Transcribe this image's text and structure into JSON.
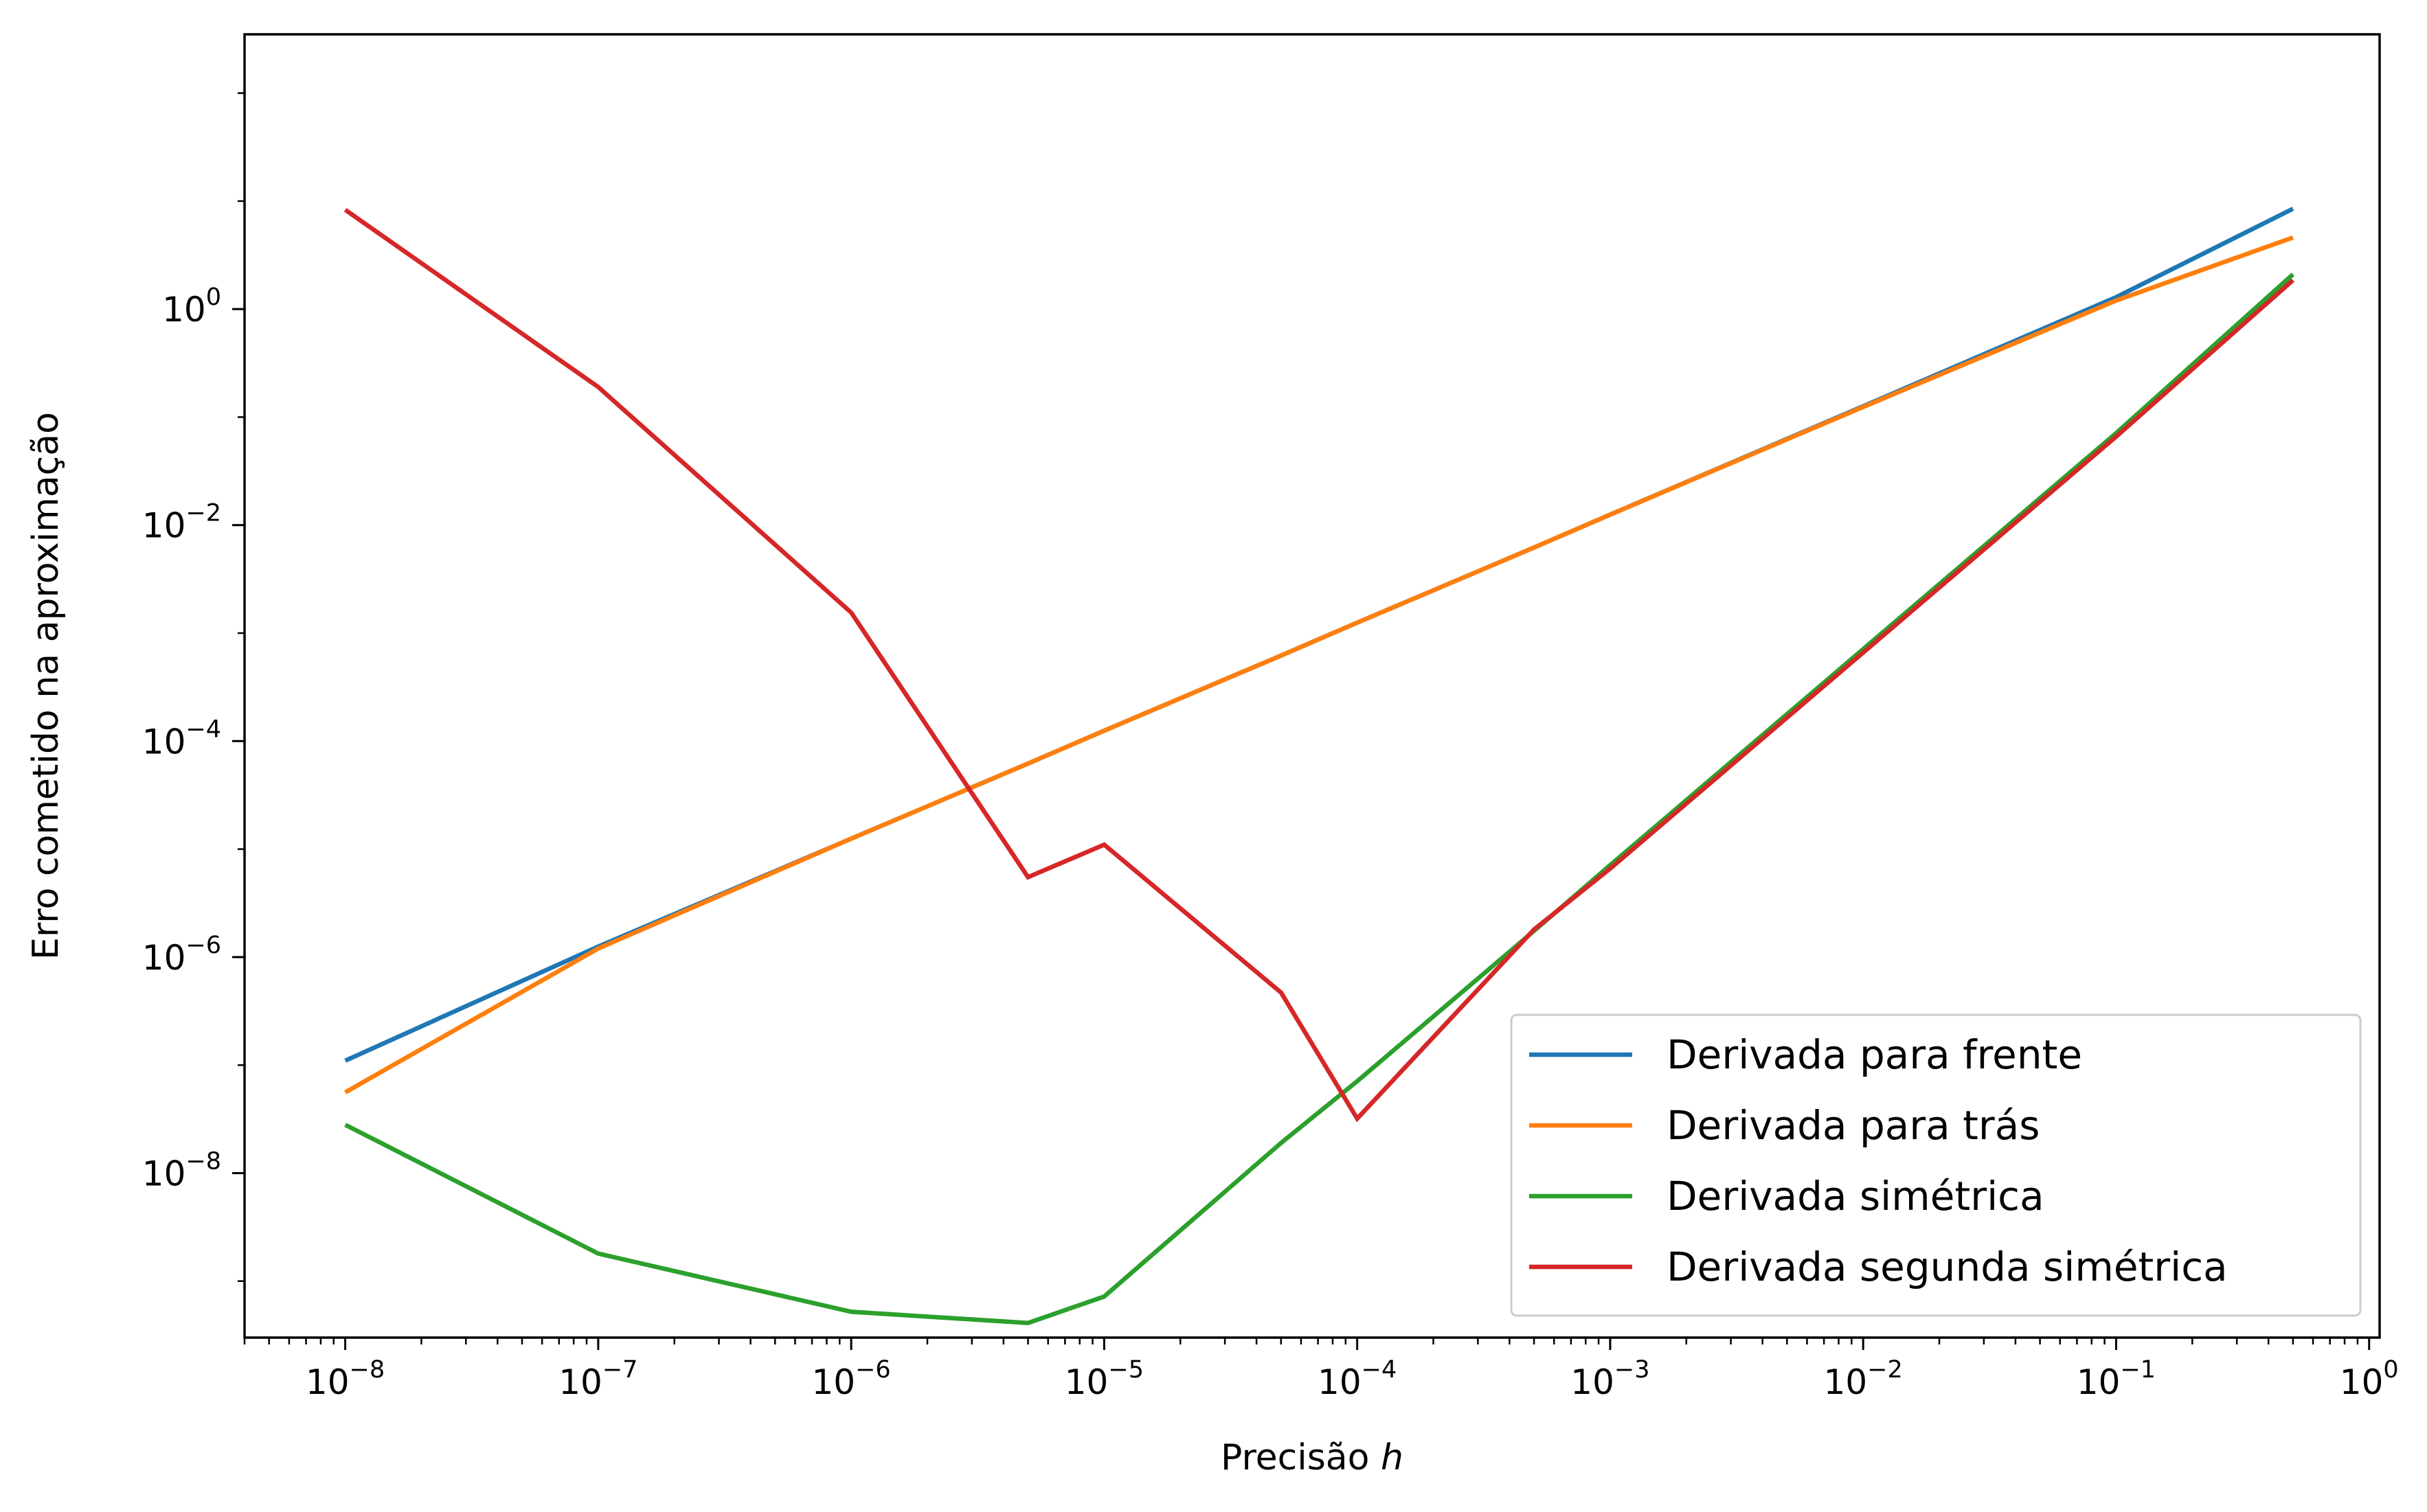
{
  "chart_data": {
    "type": "line",
    "xlabel_prefix": "Precisão ",
    "xlabel_var": "h",
    "ylabel": "Erro cometido na aproximação",
    "xscale": "log",
    "yscale": "log",
    "xlim": [
      4e-09,
      1.1
    ],
    "ylim": [
      3e-10,
      350
    ],
    "grid": false,
    "legend_position": "lower right",
    "x_ticks": [
      {
        "base": "10",
        "exp": "−8"
      },
      {
        "base": "10",
        "exp": "−7"
      },
      {
        "base": "10",
        "exp": "−6"
      },
      {
        "base": "10",
        "exp": "−5"
      },
      {
        "base": "10",
        "exp": "−4"
      },
      {
        "base": "10",
        "exp": "−3"
      },
      {
        "base": "10",
        "exp": "−2"
      },
      {
        "base": "10",
        "exp": "−1"
      },
      {
        "base": "10",
        "exp": "0"
      }
    ],
    "y_ticks": [
      {
        "base": "10",
        "exp": "−8"
      },
      {
        "base": "10",
        "exp": "−6"
      },
      {
        "base": "10",
        "exp": "−4"
      },
      {
        "base": "10",
        "exp": "−2"
      },
      {
        "base": "10",
        "exp": "0"
      }
    ],
    "series": [
      {
        "name": "Derivada para frente",
        "color": "#1f77b4",
        "x": [
          1e-08,
          1e-07,
          1e-06,
          5e-06,
          1e-05,
          5e-05,
          0.0001,
          0.0005,
          0.001,
          0.01,
          0.1,
          0.5
        ],
        "y": [
          1.1e-07,
          1.25e-06,
          1.25e-05,
          6.2e-05,
          0.000125,
          0.00062,
          0.00125,
          0.0062,
          0.0125,
          0.126,
          1.29,
          8.5
        ]
      },
      {
        "name": "Derivada para trás",
        "color": "#ff7f0e",
        "x": [
          1e-08,
          1e-07,
          1e-06,
          5e-06,
          1e-05,
          5e-05,
          0.0001,
          0.0005,
          0.001,
          0.01,
          0.1,
          0.5
        ],
        "y": [
          5.6e-08,
          1.2e-06,
          1.25e-05,
          6.2e-05,
          0.000125,
          0.00062,
          0.00125,
          0.0062,
          0.0125,
          0.124,
          1.2,
          4.6
        ]
      },
      {
        "name": "Derivada simétrica",
        "color": "#2ca02c",
        "x": [
          1e-08,
          1e-07,
          1e-06,
          5e-06,
          1e-05,
          5e-05,
          0.0001,
          0.0005,
          0.001,
          0.01,
          0.1,
          0.5
        ],
        "y": [
          2.8e-08,
          1.8e-09,
          5.2e-10,
          4.1e-10,
          7.2e-10,
          1.9e-08,
          7.1e-08,
          1.75e-06,
          7.1e-06,
          0.00071,
          0.071,
          2.1
        ]
      },
      {
        "name": "Derivada segunda simétrica",
        "color": "#d62728",
        "x": [
          1e-08,
          1e-07,
          1e-06,
          5e-06,
          1e-05,
          5e-05,
          0.0001,
          0.0005,
          0.001,
          0.01,
          0.1,
          0.5
        ],
        "y": [
          8.3,
          0.19,
          0.00155,
          5.5e-06,
          1.1e-05,
          4.7e-07,
          3.2e-08,
          1.8e-06,
          6.6e-06,
          0.00066,
          0.066,
          1.85
        ]
      }
    ]
  }
}
